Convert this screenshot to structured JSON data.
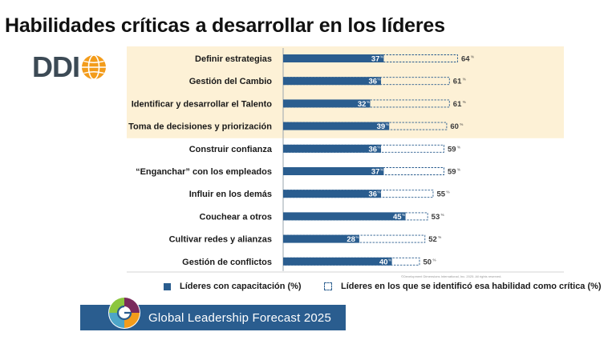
{
  "title": "Habilidades críticas a desarrollar en los líderes",
  "logo": {
    "text": "DDI",
    "icon": "globe-icon",
    "color": "#f39c1b"
  },
  "chart_data": {
    "type": "bar",
    "orientation": "horizontal",
    "categories": [
      "Definir estrategias",
      "Gestión del Cambio",
      "Identificar y desarrollar el Talento",
      "Toma de decisiones y priorización",
      "Construir confianza",
      "“Enganchar” con los empleados",
      "Influir en los demás",
      "Couchear a otros",
      "Cultivar redes y alianzas",
      "Gestión de conflictos"
    ],
    "series": [
      {
        "name": "Líderes con capacitación (%)",
        "values": [
          37,
          36,
          32,
          39,
          36,
          37,
          36,
          45,
          28,
          40
        ],
        "color": "#2a5d8f",
        "style": "solid"
      },
      {
        "name": "Líderes en los que se identificó esa habilidad como crítica (%)",
        "values": [
          64,
          61,
          61,
          60,
          59,
          59,
          55,
          53,
          52,
          50
        ],
        "color": "#2a5d8f",
        "style": "dashed"
      }
    ],
    "value_suffix": "%",
    "highlighted_categories": [
      0,
      1,
      2,
      3
    ],
    "highlight_color": "#fdf1d6",
    "xlim": [
      0,
      100
    ],
    "legend": "bottom"
  },
  "footnote": "©Development Dimensions International, Inc. 2025. All rights reserved.",
  "banner": {
    "text": "Global Leadership Forecast 2025",
    "color": "#2a5d8f"
  }
}
